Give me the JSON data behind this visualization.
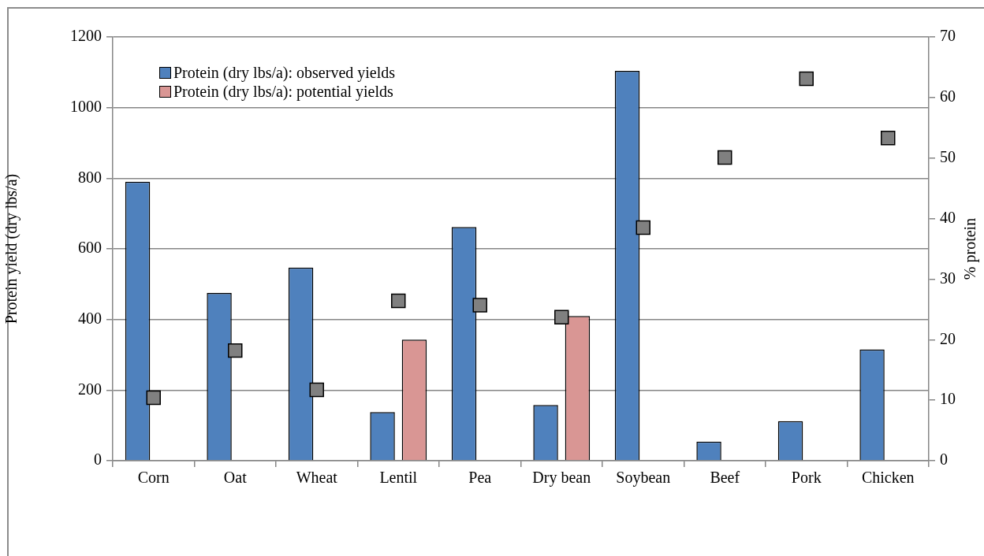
{
  "chart_data": {
    "type": "bar",
    "ylabel": "Protein yield (dry lbs/a)",
    "y2label": "% protein",
    "categories": [
      "Corn",
      "Oat",
      "Wheat",
      "Lentil",
      "Pea",
      "Dry bean",
      "Soybean",
      "Beef",
      "Pork",
      "Chicken"
    ],
    "series": [
      {
        "name": "Protein (dry lbs/a): observed yields",
        "color": "#4f81bd",
        "values": [
          790,
          475,
          547,
          138,
          662,
          158,
          1104,
          54,
          112,
          315
        ]
      },
      {
        "name": "Protein (dry lbs/a): potential yields",
        "color": "#d99694",
        "values": [
          null,
          null,
          null,
          343,
          null,
          410,
          null,
          null,
          null,
          null
        ]
      },
      {
        "type": "scatter",
        "axis": "y2",
        "color": "#808080",
        "marker": "square",
        "x": [
          "Corn",
          "Oat",
          "Wheat",
          "Lentil",
          "Pea",
          "Dry bean",
          "Soybean",
          "Beef",
          "Pork",
          "Chicken"
        ],
        "values": [
          10.4,
          18.2,
          11.7,
          26.4,
          25.7,
          23.7,
          38.5,
          50.1,
          63.1,
          53.3
        ]
      }
    ],
    "ylim": [
      0,
      1200
    ],
    "yticks": [
      0,
      200,
      400,
      600,
      800,
      1000,
      1200
    ],
    "y2lim": [
      0,
      70
    ],
    "y2ticks": [
      0,
      10,
      20,
      30,
      40,
      50,
      60,
      70
    ],
    "grid": "y",
    "legend": "top left"
  }
}
